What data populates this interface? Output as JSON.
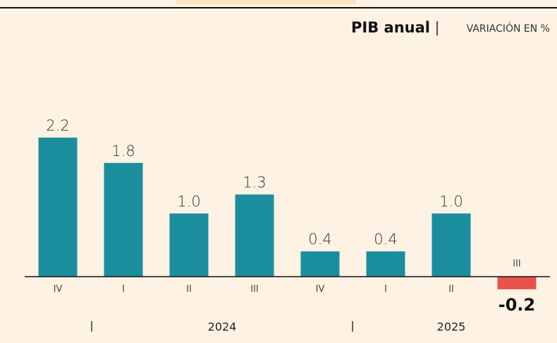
{
  "chart_data": {
    "type": "bar",
    "title": "PIB anual",
    "subtitle": "VARIACIÓN EN %",
    "categories": [
      "IV",
      "I",
      "II",
      "III",
      "IV",
      "I",
      "II",
      "III"
    ],
    "values": [
      2.2,
      1.8,
      1.0,
      1.3,
      0.4,
      0.4,
      1.0,
      -0.2
    ],
    "value_labels": [
      "2.2",
      "1.8",
      "1.0",
      "1.3",
      "0.4",
      "0.4",
      "1.0",
      "-0.2"
    ],
    "groups": [
      "2024",
      "2025"
    ],
    "color": "#1b8e9e",
    "negative_color": "#e9524b"
  }
}
